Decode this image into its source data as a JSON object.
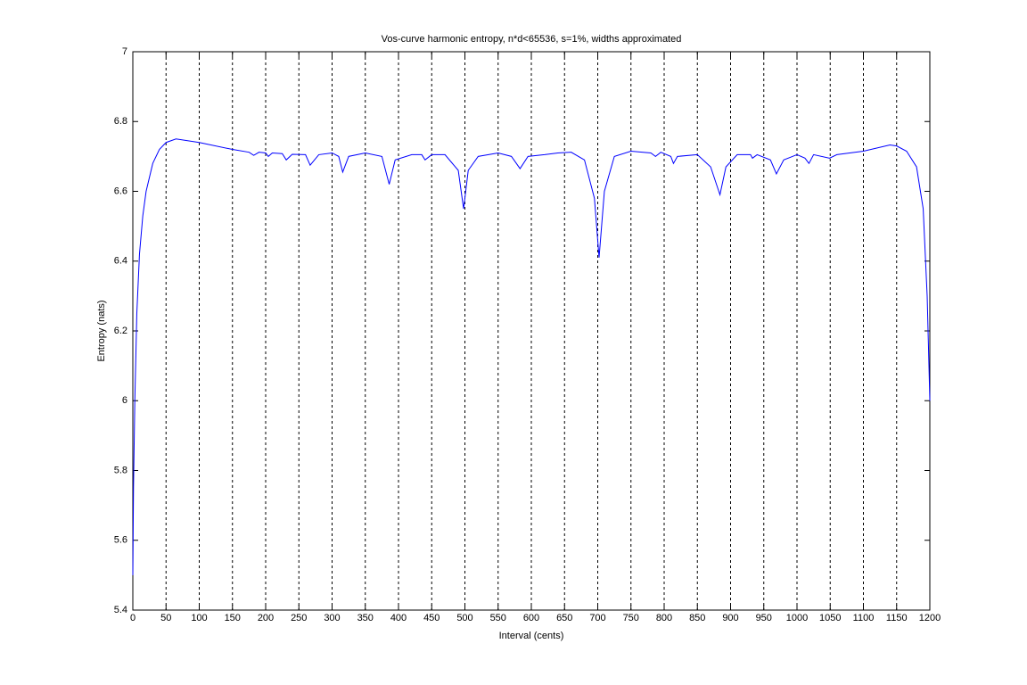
{
  "chart_data": {
    "type": "line",
    "title": "Vos-curve harmonic entropy, n*d<65536, s=1%, widths approximated",
    "xlabel": "Interval (cents)",
    "ylabel": "Entropy (nats)",
    "x": [
      0,
      1,
      3,
      6,
      10,
      15,
      20,
      30,
      40,
      50,
      65,
      100,
      150,
      175,
      182,
      190,
      200,
      204,
      210,
      225,
      231,
      240,
      260,
      267,
      280,
      300,
      310,
      316,
      325,
      350,
      375,
      386,
      395,
      420,
      435,
      440,
      450,
      470,
      490,
      498,
      505,
      520,
      550,
      570,
      583,
      595,
      620,
      640,
      660,
      680,
      695,
      702,
      710,
      725,
      750,
      780,
      787,
      795,
      810,
      814,
      820,
      850,
      870,
      884,
      893,
      910,
      930,
      933,
      940,
      960,
      969,
      980,
      1000,
      1012,
      1018,
      1025,
      1049,
      1060,
      1100,
      1140,
      1150,
      1165,
      1180,
      1190,
      1196,
      1200
    ],
    "series": [
      {
        "name": "Entropy",
        "color": "#0000ff",
        "values": [
          5.5,
          5.75,
          6.0,
          6.25,
          6.42,
          6.53,
          6.6,
          6.68,
          6.72,
          6.74,
          6.75,
          6.74,
          6.72,
          6.712,
          6.703,
          6.712,
          6.71,
          6.7,
          6.71,
          6.708,
          6.69,
          6.706,
          6.705,
          6.675,
          6.705,
          6.71,
          6.7,
          6.655,
          6.7,
          6.71,
          6.7,
          6.62,
          6.69,
          6.705,
          6.705,
          6.69,
          6.705,
          6.705,
          6.66,
          6.55,
          6.66,
          6.7,
          6.71,
          6.7,
          6.665,
          6.7,
          6.705,
          6.71,
          6.712,
          6.69,
          6.58,
          6.41,
          6.6,
          6.7,
          6.715,
          6.71,
          6.7,
          6.712,
          6.7,
          6.68,
          6.7,
          6.705,
          6.67,
          6.59,
          6.67,
          6.705,
          6.705,
          6.695,
          6.705,
          6.69,
          6.65,
          6.69,
          6.705,
          6.695,
          6.68,
          6.705,
          6.695,
          6.705,
          6.715,
          6.733,
          6.73,
          6.715,
          6.67,
          6.55,
          6.3,
          6.0
        ]
      }
    ],
    "xlim": [
      0,
      1200
    ],
    "xticks": [
      0,
      50,
      100,
      150,
      200,
      250,
      300,
      350,
      400,
      450,
      500,
      550,
      600,
      650,
      700,
      750,
      800,
      850,
      900,
      950,
      1000,
      1050,
      1100,
      1150,
      1200
    ],
    "ylim": [
      5.4,
      7
    ],
    "yticks": [
      5.4,
      5.6,
      5.8,
      6,
      6.2,
      6.4,
      6.6,
      6.8,
      7
    ],
    "xgrid": true
  }
}
